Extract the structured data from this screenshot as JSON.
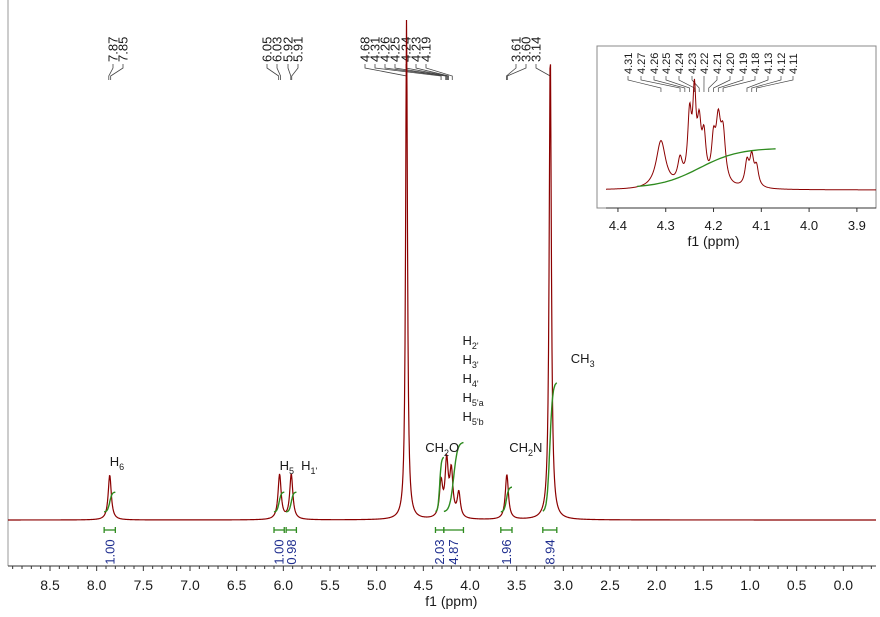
{
  "chart_data": [
    {
      "type": "line",
      "xlabel": "f1 (ppm)",
      "xlim": [
        8.95,
        -0.35
      ],
      "x_ticks": [
        "8.5",
        "8.0",
        "7.5",
        "7.0",
        "6.5",
        "6.0",
        "5.5",
        "5.0",
        "4.5",
        "4.0",
        "3.5",
        "3.0",
        "2.5",
        "2.0",
        "1.5",
        "1.0",
        "0.5",
        "0.0"
      ],
      "colors": {
        "spectrum": "#8b0000",
        "integral": "#2e8b1f",
        "integral_bracket": "#2e8b1f",
        "integral_value": "#1f2e8f"
      },
      "peaks": [
        {
          "ppm": 7.86,
          "height": 0.09,
          "width": 0.02
        },
        {
          "ppm": 6.04,
          "height": 0.09,
          "width": 0.02
        },
        {
          "ppm": 5.915,
          "height": 0.09,
          "width": 0.02
        },
        {
          "ppm": 4.68,
          "height": 1.0,
          "width": 0.012
        },
        {
          "ppm": 4.31,
          "height": 0.07,
          "width": 0.02
        },
        {
          "ppm": 4.25,
          "height": 0.11,
          "width": 0.02
        },
        {
          "ppm": 4.2,
          "height": 0.09,
          "width": 0.02
        },
        {
          "ppm": 4.12,
          "height": 0.05,
          "width": 0.02
        },
        {
          "ppm": 3.605,
          "height": 0.09,
          "width": 0.02
        },
        {
          "ppm": 3.14,
          "height": 0.94,
          "width": 0.014
        }
      ],
      "peak_labels": [
        {
          "ppm": 7.87,
          "text": "7.87"
        },
        {
          "ppm": 7.85,
          "text": "7.85"
        },
        {
          "ppm": 6.05,
          "text": "6.05"
        },
        {
          "ppm": 6.03,
          "text": "6.03"
        },
        {
          "ppm": 5.92,
          "text": "5.92"
        },
        {
          "ppm": 5.91,
          "text": "5.91"
        },
        {
          "ppm": 4.68,
          "text": "4.68"
        },
        {
          "ppm": 4.31,
          "text": "4.31"
        },
        {
          "ppm": 4.26,
          "text": "4.26"
        },
        {
          "ppm": 4.25,
          "text": "4.25"
        },
        {
          "ppm": 4.24,
          "text": "4.24"
        },
        {
          "ppm": 4.23,
          "text": "4.23"
        },
        {
          "ppm": 4.19,
          "text": "4.19"
        },
        {
          "ppm": 3.61,
          "text": "3.61"
        },
        {
          "ppm": 3.6,
          "text": "3.60"
        },
        {
          "ppm": 3.14,
          "text": "3.14"
        }
      ],
      "integrals": [
        {
          "from": 7.92,
          "to": 7.8,
          "value": "1.00"
        },
        {
          "from": 6.1,
          "to": 5.99,
          "value": "1.00"
        },
        {
          "from": 5.97,
          "to": 5.86,
          "value": "0.98"
        },
        {
          "from": 4.37,
          "to": 4.28,
          "value": "2.03"
        },
        {
          "from": 4.28,
          "to": 4.07,
          "value": "4.87"
        },
        {
          "from": 3.67,
          "to": 3.55,
          "value": "1.96"
        },
        {
          "from": 3.22,
          "to": 3.07,
          "value": "8.94"
        }
      ],
      "assignments": [
        {
          "ppm": 7.86,
          "parts": [
            [
              "H",
              "6",
              ""
            ]
          ]
        },
        {
          "ppm": 6.04,
          "parts": [
            [
              "H",
              "5",
              ""
            ]
          ]
        },
        {
          "ppm": 5.81,
          "parts": [
            [
              "H",
              "1'",
              ""
            ]
          ]
        },
        {
          "ppm": 4.48,
          "parts": [
            [
              "CH",
              "2",
              ""
            ],
            [
              "O",
              "",
              ""
            ]
          ]
        },
        {
          "ppm": 4.08,
          "stacked": true,
          "parts": [
            [
              "H",
              "2'",
              ""
            ],
            [
              "H",
              "3'",
              ""
            ],
            [
              "H",
              "4'",
              ""
            ],
            [
              "H",
              "5'a",
              ""
            ],
            [
              "H",
              "5'b",
              ""
            ]
          ]
        },
        {
          "ppm": 3.58,
          "parts": [
            [
              "CH",
              "2",
              ""
            ],
            [
              "N",
              "",
              ""
            ]
          ]
        },
        {
          "ppm": 2.92,
          "parts": [
            [
              "CH",
              "3",
              ""
            ]
          ]
        }
      ]
    },
    {
      "type": "line",
      "inset": true,
      "xlabel": "f1 (ppm)",
      "xlim": [
        4.425,
        3.86
      ],
      "x_ticks": [
        "4.4",
        "4.3",
        "4.2",
        "4.1",
        "4.0",
        "3.9"
      ],
      "peaks": [
        {
          "ppm": 4.31,
          "height": 0.5,
          "width": 0.012
        },
        {
          "ppm": 4.27,
          "height": 0.25,
          "width": 0.006
        },
        {
          "ppm": 4.25,
          "height": 0.7,
          "width": 0.005
        },
        {
          "ppm": 4.24,
          "height": 0.85,
          "width": 0.004
        },
        {
          "ppm": 4.23,
          "height": 0.55,
          "width": 0.005
        },
        {
          "ppm": 4.22,
          "height": 0.45,
          "width": 0.005
        },
        {
          "ppm": 4.2,
          "height": 0.4,
          "width": 0.005
        },
        {
          "ppm": 4.19,
          "height": 0.6,
          "width": 0.006
        },
        {
          "ppm": 4.18,
          "height": 0.5,
          "width": 0.006
        },
        {
          "ppm": 4.13,
          "height": 0.25,
          "width": 0.005
        },
        {
          "ppm": 4.12,
          "height": 0.3,
          "width": 0.005
        },
        {
          "ppm": 4.11,
          "height": 0.2,
          "width": 0.005
        }
      ],
      "peak_labels": [
        {
          "ppm": 4.31,
          "text": "4.31"
        },
        {
          "ppm": 4.27,
          "text": "4.27"
        },
        {
          "ppm": 4.26,
          "text": "4.26"
        },
        {
          "ppm": 4.25,
          "text": "4.25"
        },
        {
          "ppm": 4.24,
          "text": "4.24"
        },
        {
          "ppm": 4.23,
          "text": "4.23"
        },
        {
          "ppm": 4.22,
          "text": "4.22"
        },
        {
          "ppm": 4.21,
          "text": "4.21"
        },
        {
          "ppm": 4.2,
          "text": "4.20"
        },
        {
          "ppm": 4.19,
          "text": "4.19"
        },
        {
          "ppm": 4.18,
          "text": "4.18"
        },
        {
          "ppm": 4.13,
          "text": "4.13"
        },
        {
          "ppm": 4.12,
          "text": "4.12"
        },
        {
          "ppm": 4.11,
          "text": "4.11"
        }
      ]
    }
  ]
}
